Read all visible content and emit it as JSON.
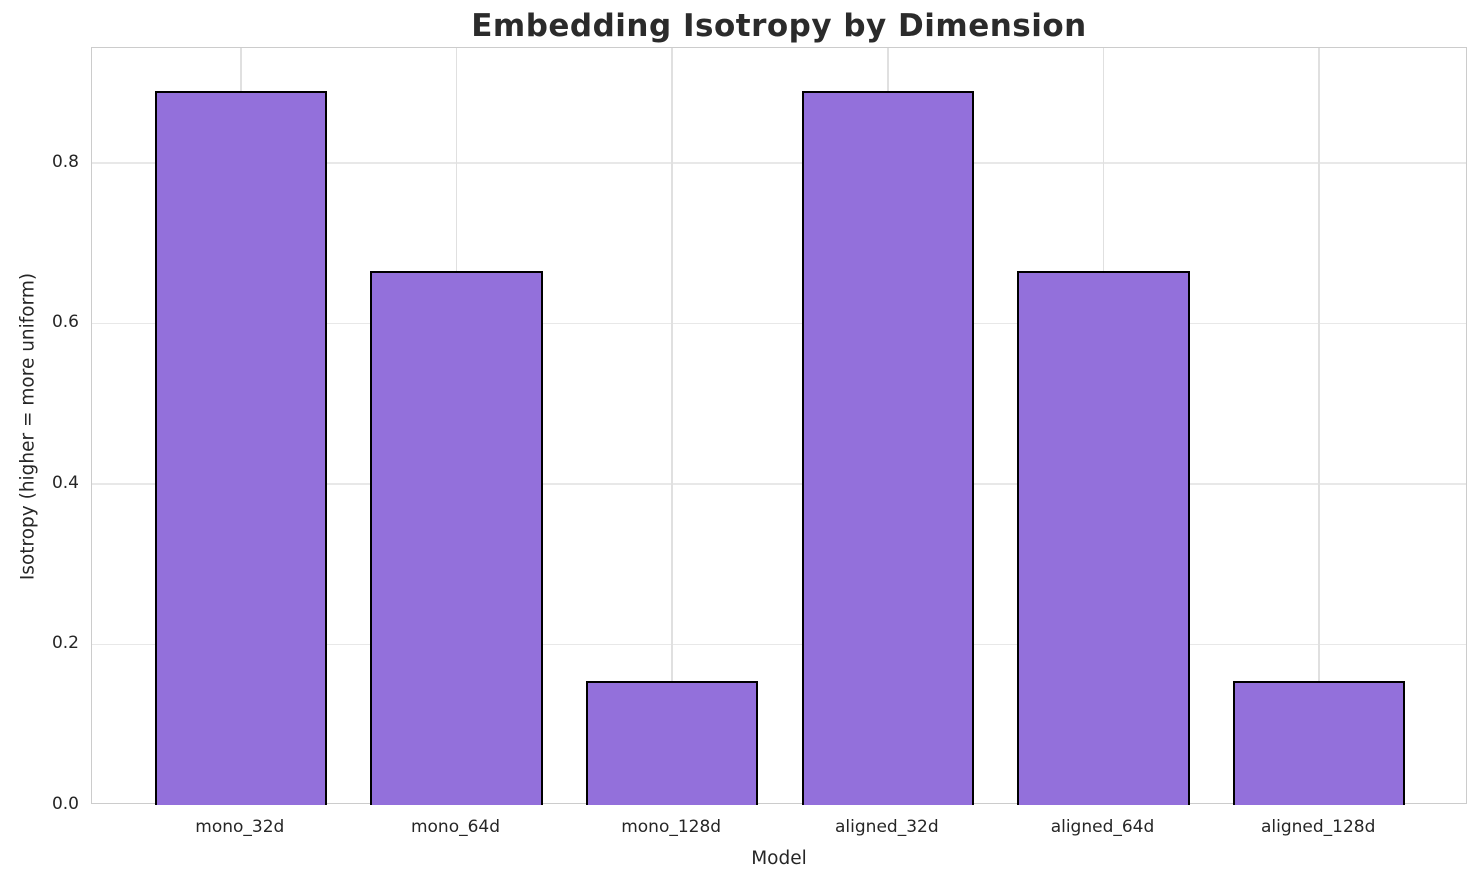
{
  "chart_data": {
    "type": "bar",
    "title": "Embedding Isotropy by Dimension",
    "xlabel": "Model",
    "ylabel": "Isotropy (higher = more uniform)",
    "categories": [
      "mono_32d",
      "mono_64d",
      "mono_128d",
      "aligned_32d",
      "aligned_64d",
      "aligned_128d"
    ],
    "values": [
      0.89,
      0.665,
      0.155,
      0.89,
      0.665,
      0.155
    ],
    "yticks": [
      0.0,
      0.2,
      0.4,
      0.6,
      0.8
    ],
    "ytick_labels": [
      "0.0",
      "0.2",
      "0.4",
      "0.6",
      "0.8"
    ],
    "ylim": [
      0,
      0.943
    ],
    "xlim": [
      -0.69,
      5.69
    ],
    "bar_width": 0.8,
    "grid": true,
    "legend_position": "none",
    "colors": {
      "bar_fill": "#9370DB",
      "bar_edge": "#000000",
      "grid_h": "#e8e8e8",
      "grid_v": "#e0e0e0",
      "spine": "#cccccc",
      "text": "#262626",
      "title_text": "#2b2b2b",
      "background": "#ffffff"
    }
  }
}
